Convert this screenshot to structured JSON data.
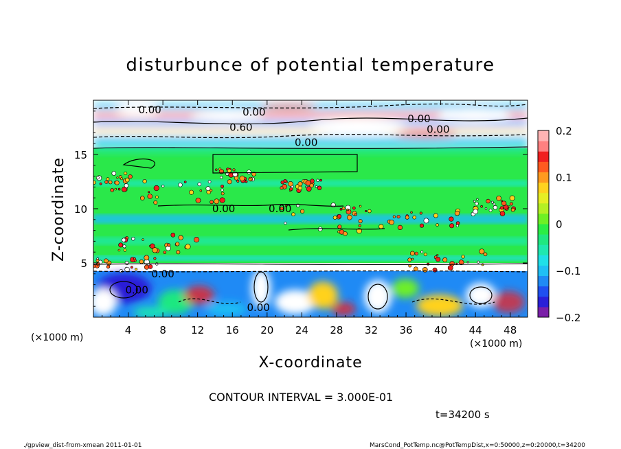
{
  "chart_data": {
    "type": "heatmap",
    "title": "disturbunce of potential temperature",
    "xlabel": "X-coordinate",
    "ylabel": "Z-coordinate",
    "x_unit": "(×1000 m)",
    "y_unit": "(×1000 m)",
    "xlim": [
      0,
      50
    ],
    "ylim": [
      0,
      20
    ],
    "x_ticks": [
      4,
      8,
      12,
      16,
      20,
      24,
      28,
      32,
      36,
      40,
      44,
      48
    ],
    "y_ticks": [
      5,
      10,
      15
    ],
    "colorbar": {
      "range": [
        -0.2,
        0.2
      ],
      "tick_values": [
        0.2,
        0.1,
        0,
        -0.1,
        -0.2
      ],
      "tick_labels": [
        "0.2",
        "0.1",
        "0",
        "−0.1",
        "−0.2"
      ],
      "colors": [
        "#7a1fa8",
        "#2a1fd8",
        "#1f4ff0",
        "#1f8af5",
        "#1fbff5",
        "#1fe0e8",
        "#1fe8b0",
        "#1fe880",
        "#2aee45",
        "#6ef025",
        "#b4f025",
        "#e6ee25",
        "#ffd21f",
        "#ff9a1f",
        "#ff5a1f",
        "#f01f1f",
        "#ff8080",
        "#ffb4b4"
      ]
    },
    "contour_labels": [
      {
        "text": "0.00",
        "x": 6.5,
        "z": 19.1
      },
      {
        "text": "0.00",
        "x": 18.5,
        "z": 18.9
      },
      {
        "text": "0.60",
        "x": 17.0,
        "z": 17.5
      },
      {
        "text": "0.00",
        "x": 37.5,
        "z": 18.3
      },
      {
        "text": "0.00",
        "x": 39.7,
        "z": 17.3
      },
      {
        "text": "0.00",
        "x": 24.5,
        "z": 16.1
      },
      {
        "text": "0.00",
        "x": 15.0,
        "z": 10.0
      },
      {
        "text": "0.00",
        "x": 21.5,
        "z": 10.0
      },
      {
        "text": "0.00",
        "x": 8.0,
        "z": 4.0
      },
      {
        "text": "0.00",
        "x": 5.0,
        "z": 2.5
      },
      {
        "text": "0.00",
        "x": 19.0,
        "z": 0.9
      }
    ]
  },
  "contour_interval": "CONTOUR INTERVAL = 3.000E-01",
  "time_label": "t=34200 s",
  "footer_left": "./gpview_dist-from-xmean  2011-01-01",
  "footer_right": "MarsCond_PotTemp.nc@PotTempDist,x=0:50000,z=0:20000,t=34200"
}
